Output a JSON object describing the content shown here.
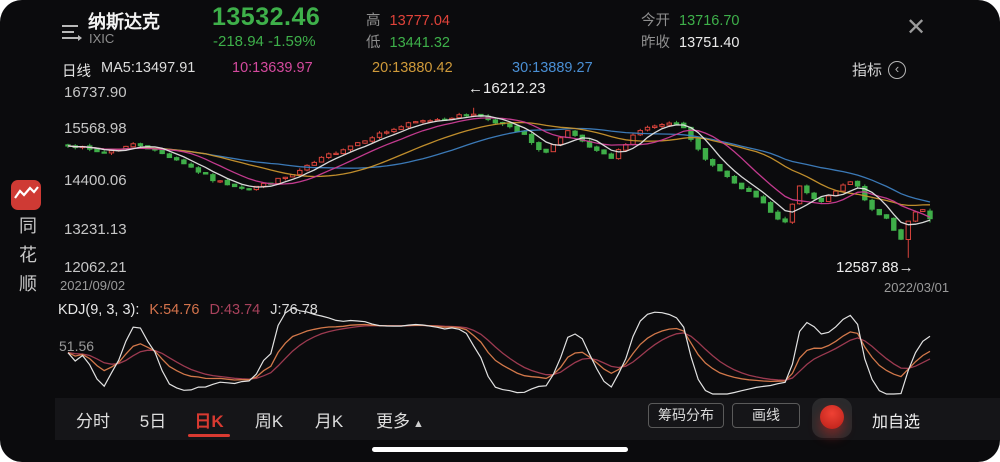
{
  "header": {
    "name": "纳斯达克",
    "code": "IXIC",
    "price": "13532.46",
    "change": "-218.94  -1.59%",
    "high_label": "高",
    "high": "13777.04",
    "low_label": "低",
    "low": "13441.32",
    "open_label": "今开",
    "open": "13716.70",
    "prev_close_label": "昨收",
    "prev_close": "13751.40",
    "close_glyph": "✕"
  },
  "sidebar": {
    "brand_chars": [
      "同",
      "花",
      "顺"
    ]
  },
  "ma_bar": {
    "period": "日线",
    "ma5": "MA5:13497.91",
    "ma10": "10:13639.97",
    "ma20": "20:13880.42",
    "ma30": "30:13889.27",
    "indicator_label": "指标",
    "indicator_glyph": "‹"
  },
  "chart_labels": {
    "y_axis": [
      "16737.90",
      "15568.98",
      "14400.06",
      "13231.13",
      "12062.21"
    ],
    "date_start": "2021/09/02",
    "date_end": "2022/03/01",
    "peak_annotation": "←16212.23",
    "low_annotation": "12587.88→"
  },
  "kdj_bar": {
    "title": "KDJ(9, 3, 3):",
    "k": "K:54.76",
    "d": "D:43.74",
    "j": "J:76.78",
    "axis_label": "51.56"
  },
  "tabbar": {
    "tabs": [
      {
        "label": "分时"
      },
      {
        "label": "5日"
      },
      {
        "label": "日K"
      },
      {
        "label": "周K"
      },
      {
        "label": "月K"
      }
    ],
    "more": "更多",
    "more_caret": "▲",
    "chip_distribution": "筹码分布",
    "draw_line": "画线",
    "add_watchlist": "加自选"
  },
  "chart_data": {
    "type": "candlestick",
    "symbol": "纳斯达克 IXIC",
    "period": "日线",
    "x_range": [
      "2021/09/02",
      "2022/03/01"
    ],
    "y_axis_ticks": [
      16737.9,
      15568.98,
      14400.06,
      13231.13,
      12062.21
    ],
    "period_high": 16212.23,
    "period_low": 12587.88,
    "last": {
      "open": 13716.7,
      "high": 13777.04,
      "low": 13441.32,
      "close": 13532.46,
      "prev_close": 13751.4,
      "change": -218.94,
      "change_pct": -1.59
    },
    "ma_values": {
      "ma5": 13497.91,
      "ma10": 13639.97,
      "ma20": 13880.42,
      "ma30": 13889.27
    },
    "kdj_values": {
      "params": [
        9,
        3,
        3
      ],
      "k": 54.76,
      "d": 43.74,
      "j": 76.78,
      "axis_mid": 51.56
    },
    "candle_count": 120,
    "price_path_anchors": [
      [
        0.0,
        15331
      ],
      [
        0.04,
        15115
      ],
      [
        0.08,
        15350
      ],
      [
        0.13,
        14930
      ],
      [
        0.17,
        14449
      ],
      [
        0.21,
        14255
      ],
      [
        0.26,
        14580
      ],
      [
        0.3,
        15050
      ],
      [
        0.35,
        15500
      ],
      [
        0.4,
        15850
      ],
      [
        0.44,
        15972
      ],
      [
        0.47,
        16057
      ],
      [
        0.5,
        15854
      ],
      [
        0.53,
        15537
      ],
      [
        0.55,
        15085
      ],
      [
        0.58,
        15631
      ],
      [
        0.61,
        15180
      ],
      [
        0.63,
        14980
      ],
      [
        0.66,
        15653
      ],
      [
        0.68,
        15766
      ],
      [
        0.71,
        15832
      ],
      [
        0.74,
        14936
      ],
      [
        0.76,
        14650
      ],
      [
        0.79,
        14154
      ],
      [
        0.81,
        13855
      ],
      [
        0.83,
        13352
      ],
      [
        0.85,
        14346
      ],
      [
        0.87,
        13878
      ],
      [
        0.885,
        14098
      ],
      [
        0.91,
        14490
      ],
      [
        0.93,
        13791
      ],
      [
        0.95,
        13548
      ],
      [
        0.965,
        13037
      ],
      [
        0.978,
        13473
      ],
      [
        0.99,
        13694
      ],
      [
        0.9955,
        13751
      ],
      [
        1.0,
        13532
      ]
    ],
    "colors": {
      "up": "#d9443c",
      "down": "#3fae49",
      "ma5": "#e4e4e4",
      "ma10": "#cc3d96",
      "ma20": "#c9952e",
      "ma30": "#3e80c0",
      "kdj_k": "#d2784a",
      "kdj_d": "#9c3a50",
      "kdj_j": "#e2e2e2",
      "price_up_text": "#e0433a",
      "price_down_text": "#3eb04a"
    }
  }
}
